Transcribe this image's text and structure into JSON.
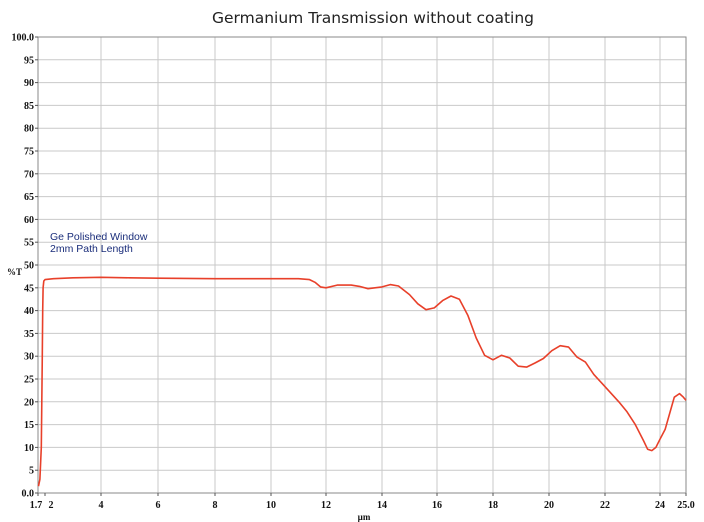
{
  "chart_data": {
    "type": "line",
    "title": "Germanium Transmission without coating",
    "xlabel": "µm",
    "ylabel": "%T",
    "ylim": [
      0,
      100
    ],
    "grid": true,
    "x_ticks": [
      "1.7",
      "2",
      "4",
      "6",
      "8",
      "10",
      "12",
      "14",
      "16",
      "18",
      "20",
      "22",
      "24",
      "25.0"
    ],
    "y_ticks": [
      "100.0",
      "95",
      "90",
      "85",
      "80",
      "75",
      "70",
      "65",
      "60",
      "55",
      "50",
      "45",
      "40",
      "35",
      "30",
      "25",
      "20",
      "15",
      "10",
      "5",
      "0.0"
    ],
    "annotations": [
      "Ge Polished Window",
      "2mm Path Length"
    ],
    "line_color": "#e8402a",
    "series": [
      {
        "x": [
          1.72,
          1.78,
          1.84,
          1.88,
          1.9,
          1.92,
          1.95,
          2.0,
          2.3,
          3.0,
          4.0,
          5.0,
          6.0,
          8.0,
          10.0,
          11.0,
          11.4,
          11.6,
          11.8,
          12.0,
          12.4,
          12.9,
          13.2,
          13.5,
          14.0,
          14.3,
          14.6,
          15.0,
          15.3,
          15.6,
          15.9,
          16.2,
          16.5,
          16.8,
          17.1,
          17.4,
          17.7,
          18.0,
          18.3,
          18.6,
          18.9,
          19.2,
          19.5,
          19.8,
          20.1,
          20.4,
          20.7,
          21.0,
          21.3,
          21.6,
          21.9,
          22.2,
          22.5,
          22.8,
          23.1,
          23.4,
          23.55,
          23.7,
          23.85,
          24.0,
          24.2,
          24.4,
          24.55,
          24.75,
          24.9,
          25.0
        ],
        "y": [
          1.5,
          3,
          10,
          28,
          40,
          45,
          46.5,
          46.8,
          47.0,
          47.2,
          47.3,
          47.2,
          47.1,
          47.0,
          47.0,
          47.0,
          46.8,
          46.2,
          45.2,
          45.0,
          45.6,
          45.6,
          45.3,
          44.8,
          45.2,
          45.7,
          45.4,
          43.5,
          41.5,
          40.2,
          40.6,
          42.2,
          43.2,
          42.5,
          39.0,
          34.0,
          30.2,
          29.2,
          30.2,
          29.6,
          27.8,
          27.6,
          28.5,
          29.5,
          31.2,
          32.3,
          32.0,
          29.8,
          28.7,
          26.0,
          24.0,
          22.0,
          20.0,
          17.8,
          15.0,
          11.5,
          9.6,
          9.3,
          10.0,
          11.8,
          14.0,
          18.0,
          21.0,
          21.8,
          21.0,
          20.3
        ]
      }
    ]
  }
}
